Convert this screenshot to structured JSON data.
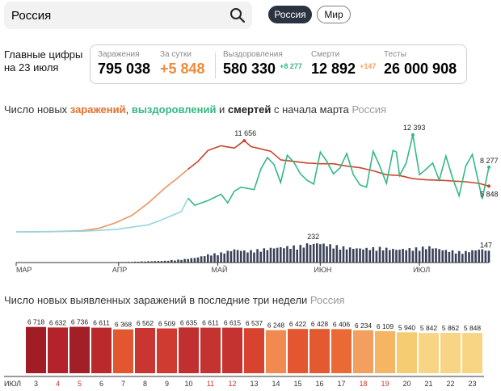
{
  "search": {
    "value": "Россия"
  },
  "region_tabs": [
    {
      "label": "Россия",
      "active": true
    },
    {
      "label": "Мир",
      "active": false
    }
  ],
  "summary": {
    "main_label": "Главные цифры на 23 июля",
    "items": [
      {
        "label": "Заражения",
        "value": "795 038",
        "delta": ""
      },
      {
        "label": "За сутки",
        "value": "+5 848",
        "delta": ""
      },
      {
        "label": "Выздоровления",
        "value": "580 330",
        "delta": "+8 277"
      },
      {
        "label": "Смерти",
        "value": "12 892",
        "delta": "+147"
      },
      {
        "label": "Тесты",
        "value": "26 000 908",
        "delta": ""
      }
    ]
  },
  "colors": {
    "infections": "#e3702d",
    "infections_avg": "#c8442d",
    "recoveries": "#35b884",
    "recoveries_early": "#8fd8e0",
    "deaths": "#3a4257",
    "delta_green": "#35b884",
    "delta_orange": "#f5a05a"
  },
  "chart1": {
    "title_parts": {
      "prefix": "Число новых ",
      "infections": "заражений",
      "comma": ", ",
      "recoveries": "выздоровлений",
      "and": " и ",
      "deaths": "смертей",
      "suffix": " с начала марта",
      "region": "Россия"
    },
    "months": [
      "МАР",
      "АПР",
      "МАЙ",
      "ИЮН",
      "ИЮЛ"
    ],
    "peak_infections": "11 656",
    "peak_recoveries": "12 393",
    "peak_deaths": "232",
    "last_recoveries": "8 277",
    "last_infections": "5 848",
    "last_deaths": "147"
  },
  "chart_data": [
    {
      "type": "line",
      "x_range": [
        "2020-03-01",
        "2020-07-23"
      ],
      "series": [
        {
          "key": "infections",
          "points": [
            [
              0,
              0
            ],
            [
              10,
              20
            ],
            [
              20,
              150
            ],
            [
              25,
              450
            ],
            [
              30,
              1150
            ],
            [
              35,
              2100
            ],
            [
              40,
              3700
            ],
            [
              45,
              5600
            ],
            [
              48,
              6600
            ],
            [
              52,
              8000
            ],
            [
              55,
              9000
            ],
            [
              58,
              10400
            ],
            [
              62,
              11000
            ],
            [
              66,
              10700
            ],
            [
              69,
              11656
            ],
            [
              71,
              10900
            ],
            [
              74,
              10600
            ],
            [
              77,
              10300
            ],
            [
              80,
              9200
            ],
            [
              84,
              9000
            ],
            [
              88,
              8800
            ],
            [
              92,
              8700
            ],
            [
              96,
              8700
            ],
            [
              100,
              8400
            ],
            [
              104,
              8200
            ],
            [
              108,
              7800
            ],
            [
              112,
              7300
            ],
            [
              116,
              7200
            ],
            [
              120,
              6800
            ],
            [
              124,
              6650
            ],
            [
              128,
              6600
            ],
            [
              132,
              6500
            ],
            [
              136,
              6400
            ],
            [
              140,
              6200
            ],
            [
              143,
              5848
            ]
          ]
        },
        {
          "key": "recoveries",
          "points": [
            [
              0,
              0
            ],
            [
              20,
              80
            ],
            [
              30,
              300
            ],
            [
              40,
              900
            ],
            [
              45,
              1700
            ],
            [
              50,
              2600
            ],
            [
              52,
              4300
            ],
            [
              54,
              3400
            ],
            [
              58,
              4000
            ],
            [
              62,
              4800
            ],
            [
              64,
              3700
            ],
            [
              66,
              5200
            ],
            [
              68,
              5700
            ],
            [
              72,
              5400
            ],
            [
              74,
              8000
            ],
            [
              76,
              9500
            ],
            [
              78,
              8600
            ],
            [
              80,
              6300
            ],
            [
              82,
              9800
            ],
            [
              84,
              8900
            ],
            [
              86,
              7400
            ],
            [
              88,
              6600
            ],
            [
              90,
              6100
            ],
            [
              92,
              10200
            ],
            [
              94,
              9000
            ],
            [
              96,
              7400
            ],
            [
              98,
              8200
            ],
            [
              100,
              10000
            ],
            [
              102,
              7300
            ],
            [
              104,
              6000
            ],
            [
              106,
              5700
            ],
            [
              108,
              10300
            ],
            [
              110,
              8400
            ],
            [
              112,
              6200
            ],
            [
              114,
              10400
            ],
            [
              115,
              10200
            ],
            [
              116,
              7200
            ],
            [
              118,
              8800
            ],
            [
              120,
              12393
            ],
            [
              122,
              7300
            ],
            [
              124,
              8000
            ],
            [
              126,
              8800
            ],
            [
              128,
              6600
            ],
            [
              130,
              9700
            ],
            [
              132,
              6900
            ],
            [
              134,
              4600
            ],
            [
              136,
              8400
            ],
            [
              138,
              9900
            ],
            [
              139,
              8000
            ],
            [
              141,
              4200
            ],
            [
              143,
              8277
            ]
          ]
        },
        {
          "key": "deaths",
          "points": [
            [
              0,
              0
            ],
            [
              25,
              3
            ],
            [
              30,
              5
            ],
            [
              35,
              9
            ],
            [
              40,
              14
            ],
            [
              45,
              20
            ],
            [
              50,
              35
            ],
            [
              55,
              60
            ],
            [
              58,
              90
            ],
            [
              62,
              110
            ],
            [
              66,
              150
            ],
            [
              70,
              130
            ],
            [
              74,
              150
            ],
            [
              78,
              170
            ],
            [
              82,
              180
            ],
            [
              86,
              190
            ],
            [
              90,
              232
            ],
            [
              95,
              200
            ],
            [
              100,
              170
            ],
            [
              105,
              160
            ],
            [
              110,
              170
            ],
            [
              115,
              150
            ],
            [
              120,
              160
            ],
            [
              125,
              180
            ],
            [
              130,
              140
            ],
            [
              135,
              120
            ],
            [
              140,
              150
            ],
            [
              143,
              147
            ]
          ]
        }
      ]
    },
    {
      "type": "bar",
      "title_text": "Число новых выявленных заражений в последние три недели",
      "region": "Россия",
      "month_label": "ИЮЛ",
      "categories": [
        "3",
        "4",
        "5",
        "6",
        "7",
        "8",
        "9",
        "10",
        "11",
        "12",
        "13",
        "14",
        "15",
        "16",
        "17",
        "18",
        "19",
        "20",
        "21",
        "22",
        "23"
      ],
      "weekend_days": [
        "4",
        "5",
        "11",
        "12",
        "18",
        "19"
      ],
      "values": [
        6718,
        6632,
        6736,
        6611,
        6368,
        6562,
        6509,
        6635,
        6611,
        6615,
        6537,
        6248,
        6422,
        6428,
        6406,
        6234,
        6109,
        5940,
        5842,
        5862,
        5848
      ],
      "value_labels": [
        "6 718",
        "6 632",
        "6 736",
        "6 611",
        "6 368",
        "6 562",
        "6 509",
        "6 635",
        "6 611",
        "6 615",
        "6 537",
        "6 248",
        "6 422",
        "6 428",
        "6 406",
        "6 234",
        "6 109",
        "5 940",
        "5 842",
        "5 862",
        "5 848"
      ],
      "bar_colors": [
        "#a11d26",
        "#b4222b",
        "#a31f27",
        "#ba2a2c",
        "#e2572f",
        "#c93530",
        "#cf3b30",
        "#c03030",
        "#c33330",
        "#c43330",
        "#d84330",
        "#f08a4f",
        "#e4562f",
        "#e45a30",
        "#ea6a35",
        "#f3a05e",
        "#f5b562",
        "#f6cc72",
        "#f7d585",
        "#f7d585",
        "#f7d585"
      ]
    }
  ]
}
